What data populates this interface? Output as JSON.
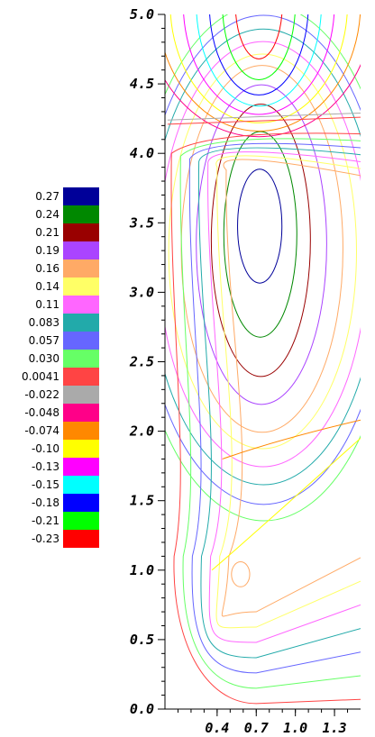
{
  "chart_data": {
    "type": "contour",
    "title": "",
    "xlabel": "",
    "ylabel": "",
    "xlim": [
      0.0,
      1.5
    ],
    "ylim": [
      0.0,
      5.0
    ],
    "x_tick_labels": [
      "0.4",
      "0.7",
      "1.0",
      "1.3"
    ],
    "x_ticks": [
      0.4,
      0.7,
      1.0,
      1.3
    ],
    "y_tick_labels": [
      "0.0",
      "0.5",
      "1.0",
      "1.5",
      "2.0",
      "2.5",
      "3.0",
      "3.5",
      "4.0",
      "4.5",
      "5.0"
    ],
    "y_ticks": [
      0.0,
      0.5,
      1.0,
      1.5,
      2.0,
      2.5,
      3.0,
      3.5,
      4.0,
      4.5,
      5.0
    ],
    "legend_placement": "left",
    "levels": [
      {
        "label": "0.27",
        "value": 0.27,
        "color": "#000099"
      },
      {
        "label": "0.24",
        "value": 0.24,
        "color": "#008800"
      },
      {
        "label": "0.21",
        "value": 0.21,
        "color": "#990000"
      },
      {
        "label": "0.19",
        "value": 0.19,
        "color": "#aa44ff"
      },
      {
        "label": "0.16",
        "value": 0.16,
        "color": "#ffaa66"
      },
      {
        "label": "0.14",
        "value": 0.14,
        "color": "#ffff66"
      },
      {
        "label": "0.11",
        "value": 0.11,
        "color": "#ff66ff"
      },
      {
        "label": "0.083",
        "value": 0.083,
        "color": "#22aaaa"
      },
      {
        "label": "0.057",
        "value": 0.057,
        "color": "#6666ff"
      },
      {
        "label": "0.030",
        "value": 0.03,
        "color": "#66ff66"
      },
      {
        "label": "0.0041",
        "value": 0.0041,
        "color": "#ff4444"
      },
      {
        "label": "-0.022",
        "value": -0.022,
        "color": "#aaaaaa"
      },
      {
        "label": "-0.048",
        "value": -0.048,
        "color": "#ff0088"
      },
      {
        "label": "-0.074",
        "value": -0.074,
        "color": "#ff8800"
      },
      {
        "label": "-0.10",
        "value": -0.1,
        "color": "#ffff00"
      },
      {
        "label": "-0.13",
        "value": -0.13,
        "color": "#ff00ff"
      },
      {
        "label": "-0.15",
        "value": -0.15,
        "color": "#00ffff"
      },
      {
        "label": "-0.18",
        "value": -0.18,
        "color": "#0000ff"
      },
      {
        "label": "-0.21",
        "value": -0.21,
        "color": "#00ff00"
      },
      {
        "label": "-0.23",
        "value": -0.23,
        "color": "#ff0000"
      }
    ],
    "upper_vortex": {
      "center": [
        0.72,
        3.55
      ],
      "contours": [
        {
          "level": 0.27,
          "rx": 0.17,
          "ry": 0.41
        },
        {
          "level": 0.24,
          "rx": 0.28,
          "ry": 0.74
        },
        {
          "level": 0.21,
          "rx": 0.38,
          "ry": 0.98
        },
        {
          "level": 0.19,
          "rx": 0.5,
          "ry": 1.15
        },
        {
          "level": 0.16,
          "rx": 0.62,
          "ry": 1.32
        },
        {
          "level": 0.14,
          "rx": 0.72,
          "ry": 1.42
        },
        {
          "level": 0.11,
          "rx": 0.8,
          "ry": 1.53
        },
        {
          "level": 0.083,
          "rx": 0.88,
          "ry": 1.64
        },
        {
          "level": 0.057,
          "rx": 0.94,
          "ry": 1.76
        },
        {
          "level": 0.03,
          "rx": 1.0,
          "ry": 1.86
        }
      ]
    },
    "top_vortex": {
      "center": [
        0.72,
        5.08
      ],
      "contours": [
        {
          "level": -0.23,
          "rx": 0.18,
          "ry": 0.4
        },
        {
          "level": -0.21,
          "rx": 0.28,
          "ry": 0.55
        },
        {
          "level": -0.18,
          "rx": 0.38,
          "ry": 0.66
        },
        {
          "level": -0.15,
          "rx": 0.48,
          "ry": 0.74
        },
        {
          "level": -0.13,
          "rx": 0.58,
          "ry": 0.8
        },
        {
          "level": -0.1,
          "rx": 0.68,
          "ry": 0.86
        },
        {
          "level": -0.074,
          "rx": 0.78,
          "ry": 0.92
        },
        {
          "level": -0.048,
          "rx": 0.88,
          "ry": 0.96
        }
      ]
    },
    "lower_eddy": {
      "center": [
        0.58,
        0.97
      ],
      "level": 0.16
    }
  }
}
